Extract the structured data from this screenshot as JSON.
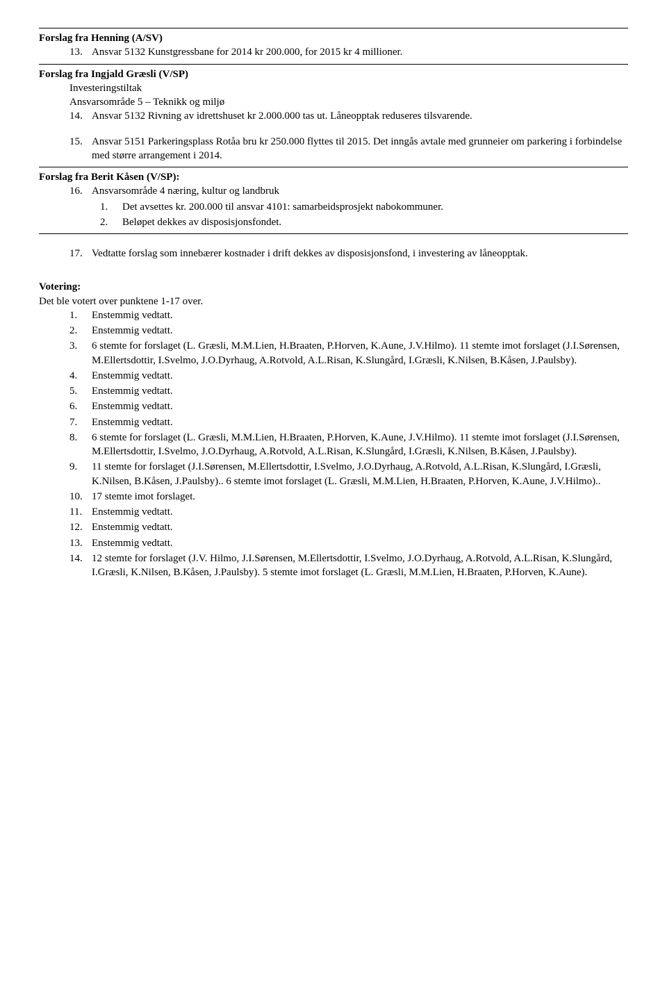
{
  "s1": {
    "title": "Forslag fra Henning (A/SV)",
    "item_marker": "13.",
    "item_text": "Ansvar 5132 Kunstgressbane for 2014 kr 200.000, for 2015 kr 4 millioner."
  },
  "s2": {
    "title": "Forslag fra Ingjald Græsli (V/SP)",
    "sub1": "Investeringstiltak",
    "sub2": "Ansvarsområde 5 – Teknikk og miljø",
    "i14_marker": "14.",
    "i14_text": "Ansvar 5132 Rivning av idrettshuset kr 2.000.000 tas ut. Låneopptak reduseres tilsvarende.",
    "i15_marker": "15.",
    "i15_text": "Ansvar 5151 Parkeringsplass Rotåa bru kr 250.000 flyttes til 2015. Det inngås avtale med grunneier om parkering i forbindelse med større arrangement i 2014."
  },
  "s3": {
    "title": "Forslag fra Berit Kåsen (V/SP):",
    "i16_marker": "16.",
    "i16_text": "Ansvarsområde 4 næring, kultur og landbruk",
    "sub1_marker": "1.",
    "sub1_text": "Det avsettes kr. 200.000 til ansvar 4101: samarbeidsprosjekt nabokommuner.",
    "sub2_marker": "2.",
    "sub2_text": "Beløpet dekkes av disposisjonsfondet."
  },
  "s4": {
    "i17_marker": "17.",
    "i17_text": "Vedtatte forslag som innebærer kostnader i drift dekkes av disposisjonsfond, i investering av låneopptak."
  },
  "voting": {
    "heading": "Votering:",
    "intro": "Det ble votert over punktene 1-17 over.",
    "items": [
      {
        "m": "1.",
        "t": "Enstemmig vedtatt."
      },
      {
        "m": "2.",
        "t": "Enstemmig vedtatt."
      },
      {
        "m": "3.",
        "t": "6 stemte for forslaget (L. Græsli, M.M.Lien, H.Braaten, P.Horven, K.Aune, J.V.Hilmo). 11 stemte imot forslaget (J.I.Sørensen,  M.Ellertsdottir, I.Svelmo, J.O.Dyrhaug, A.Rotvold, A.L.Risan, K.Slungård, I.Græsli, K.Nilsen, B.Kåsen, J.Paulsby)."
      },
      {
        "m": "4.",
        "t": "Enstemmig vedtatt."
      },
      {
        "m": "5.",
        "t": "Enstemmig vedtatt."
      },
      {
        "m": "6.",
        "t": "Enstemmig vedtatt."
      },
      {
        "m": "7.",
        "t": "Enstemmig vedtatt."
      },
      {
        "m": "8.",
        "t": "6 stemte for forslaget (L. Græsli, M.M.Lien, H.Braaten, P.Horven, K.Aune, J.V.Hilmo).  11 stemte imot forslaget (J.I.Sørensen,  M.Ellertsdottir, I.Svelmo, J.O.Dyrhaug, A.Rotvold, A.L.Risan, K.Slungård, I.Græsli, K.Nilsen, B.Kåsen, J.Paulsby)."
      },
      {
        "m": "9.",
        "t": "11 stemte for forslaget (J.I.Sørensen,  M.Ellertsdottir, I.Svelmo, J.O.Dyrhaug, A.Rotvold, A.L.Risan, K.Slungård, I.Græsli, K.Nilsen, B.Kåsen, J.Paulsby).. 6 stemte imot forslaget (L. Græsli, M.M.Lien, H.Braaten, P.Horven, K.Aune, J.V.Hilmo).."
      },
      {
        "m": "10.",
        "t": "17 stemte imot forslaget."
      },
      {
        "m": "11.",
        "t": "Enstemmig vedtatt."
      },
      {
        "m": "12.",
        "t": "Enstemmig vedtatt."
      },
      {
        "m": "13.",
        "t": "Enstemmig vedtatt."
      },
      {
        "m": "14.",
        "t": "12 stemte for forslaget (J.V. Hilmo, J.I.Sørensen,  M.Ellertsdottir, I.Svelmo, J.O.Dyrhaug, A.Rotvold, A.L.Risan, K.Slungård, I.Græsli, K.Nilsen, B.Kåsen, J.Paulsby). 5 stemte imot forslaget (L. Græsli, M.M.Lien, H.Braaten, P.Horven, K.Aune)."
      }
    ]
  }
}
